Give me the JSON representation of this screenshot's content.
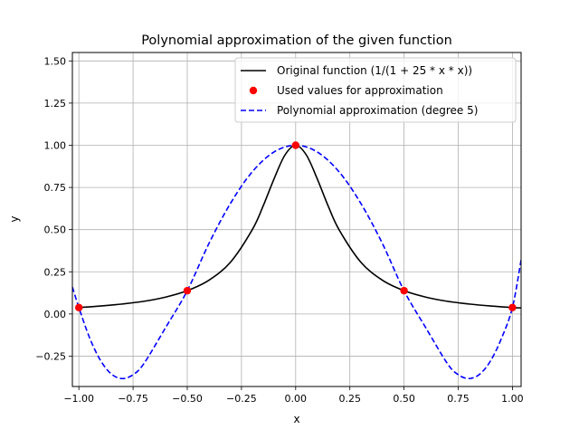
{
  "chart_data": {
    "type": "line",
    "title": "Polynomial approximation of the given function",
    "xlabel": "x",
    "ylabel": "y",
    "xlim": [
      -1.03,
      1.04
    ],
    "ylim": [
      -0.43,
      1.55
    ],
    "x_ticks": [
      -1.0,
      -0.75,
      -0.5,
      -0.25,
      0.0,
      0.25,
      0.5,
      0.75,
      1.0
    ],
    "x_tick_labels": [
      "−1.00",
      "−0.75",
      "−0.50",
      "−0.25",
      "0.00",
      "0.25",
      "0.50",
      "0.75",
      "1.00"
    ],
    "y_ticks": [
      -0.25,
      0.0,
      0.25,
      0.5,
      0.75,
      1.0,
      1.25,
      1.5
    ],
    "y_tick_labels": [
      "−0.25",
      "0.00",
      "0.25",
      "0.50",
      "0.75",
      "1.00",
      "1.25",
      "1.50"
    ],
    "grid": true,
    "legend_position": "top-right",
    "series": [
      {
        "name": "Original function (1/(1 + 25 * x * x))",
        "style": "solid",
        "color": "#000000",
        "x": [
          -1.0,
          -0.9,
          -0.8,
          -0.7,
          -0.6,
          -0.5,
          -0.4,
          -0.3,
          -0.2,
          -0.15,
          -0.1,
          -0.05,
          0.0,
          0.05,
          0.1,
          0.15,
          0.2,
          0.3,
          0.4,
          0.5,
          0.6,
          0.7,
          0.8,
          0.9,
          1.0,
          1.04
        ],
        "y": [
          0.038,
          0.047,
          0.059,
          0.075,
          0.1,
          0.138,
          0.2,
          0.308,
          0.5,
          0.64,
          0.8,
          0.941,
          1.0,
          0.941,
          0.8,
          0.64,
          0.5,
          0.308,
          0.2,
          0.138,
          0.1,
          0.075,
          0.059,
          0.047,
          0.038,
          0.036
        ]
      },
      {
        "name": "Used values for approximation",
        "style": "markers",
        "color": "#ff0000",
        "x": [
          -1.0,
          -0.5,
          0.0,
          0.5,
          1.0
        ],
        "y": [
          0.038,
          0.138,
          1.0,
          0.138,
          0.038
        ]
      },
      {
        "name": "Polynomial approximation (degree 5)",
        "style": "dashed",
        "color": "#0000ff",
        "x": [
          -1.03,
          -1.0,
          -0.95,
          -0.9,
          -0.85,
          -0.8,
          -0.75,
          -0.7,
          -0.6,
          -0.5,
          -0.4,
          -0.3,
          -0.2,
          -0.1,
          0.0,
          0.1,
          0.2,
          0.3,
          0.4,
          0.5,
          0.6,
          0.7,
          0.75,
          0.8,
          0.85,
          0.9,
          0.95,
          1.0,
          1.04
        ],
        "y": [
          0.16,
          0.038,
          -0.143,
          -0.276,
          -0.356,
          -0.383,
          -0.36,
          -0.294,
          -0.081,
          0.138,
          0.418,
          0.657,
          0.843,
          0.96,
          1.0,
          0.96,
          0.843,
          0.657,
          0.418,
          0.138,
          -0.081,
          -0.294,
          -0.36,
          -0.383,
          -0.356,
          -0.276,
          -0.143,
          0.038,
          0.32
        ]
      }
    ]
  }
}
